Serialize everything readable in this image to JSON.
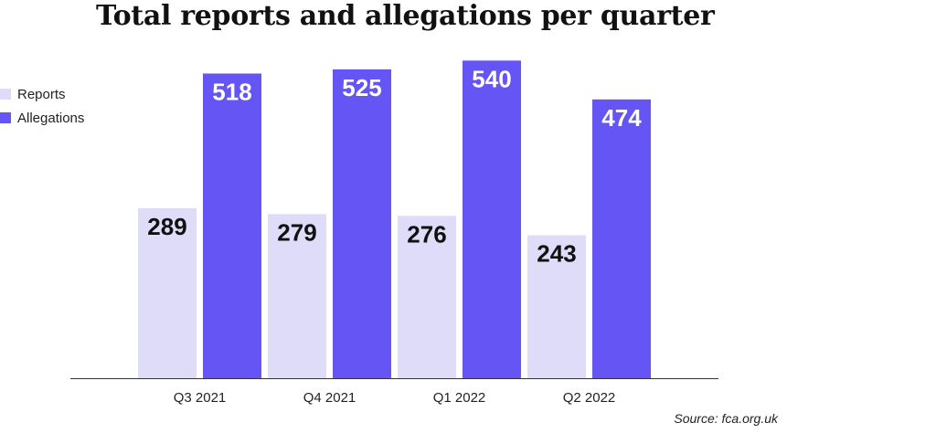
{
  "chart_data": {
    "type": "bar",
    "title": "Total reports and allegations per quarter",
    "categories": [
      "Q3 2021",
      "Q4 2021",
      "Q1 2022",
      "Q2 2022"
    ],
    "series": [
      {
        "name": "Reports",
        "values": [
          289,
          279,
          276,
          243
        ],
        "color": "#dedcf9",
        "label_color": "#111111"
      },
      {
        "name": "Allegations",
        "values": [
          518,
          525,
          540,
          474
        ],
        "color": "#6655f5",
        "label_color": "#ffffff"
      }
    ],
    "ylim": [
      0,
      570
    ],
    "grid": false,
    "legend_position": "top-left",
    "source": "Source: fca.org.uk"
  }
}
